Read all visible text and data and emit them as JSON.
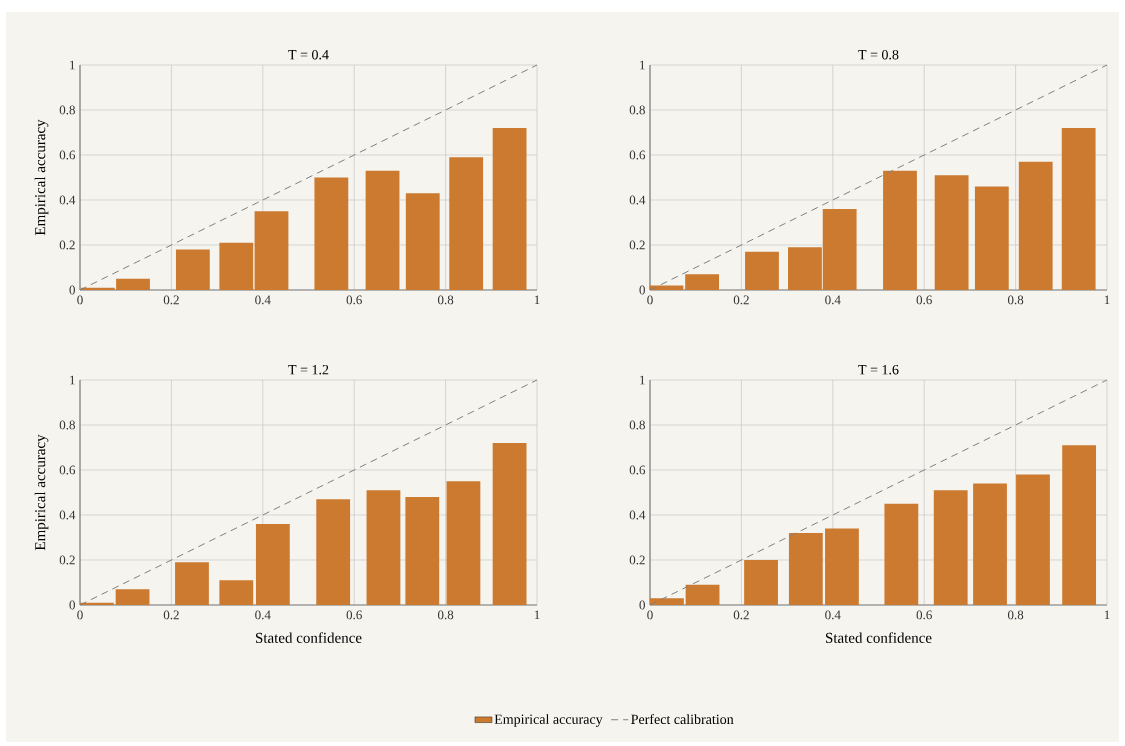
{
  "chart_data": [
    {
      "type": "bar",
      "title": "T = 0.4",
      "ylabel": "Empirical accuracy",
      "xlim": [
        0,
        1
      ],
      "ylim": [
        0,
        1
      ],
      "xticks": [
        0,
        0.2,
        0.4,
        0.6,
        0.8,
        1
      ],
      "yticks": [
        0,
        0.2,
        0.4,
        0.6,
        0.8,
        1
      ],
      "grid": true,
      "series": [
        {
          "color": "#cd7a31",
          "x": [
            0.039,
            0.116,
            0.247,
            0.342,
            0.419,
            0.55,
            0.662,
            0.75,
            0.845,
            0.94
          ],
          "values": [
            0.01,
            0.05,
            0.18,
            0.21,
            0.35,
            0.5,
            0.53,
            0.43,
            0.59,
            0.72
          ]
        },
        {
          "type": "line",
          "color": "#808080",
          "line_style": "dashed",
          "x": [
            0,
            1
          ],
          "values": [
            0,
            1
          ]
        }
      ]
    },
    {
      "type": "bar",
      "title": "T = 0.8",
      "xlim": [
        0,
        1
      ],
      "ylim": [
        0,
        1
      ],
      "xticks": [
        0,
        0.2,
        0.4,
        0.6,
        0.8,
        1
      ],
      "yticks": [
        0,
        0.2,
        0.4,
        0.6,
        0.8,
        1
      ],
      "grid": true,
      "series": [
        {
          "color": "#cd7a31",
          "x": [
            0.036,
            0.114,
            0.245,
            0.339,
            0.415,
            0.547,
            0.66,
            0.748,
            0.844,
            0.938
          ],
          "values": [
            0.02,
            0.07,
            0.17,
            0.19,
            0.36,
            0.53,
            0.51,
            0.46,
            0.57,
            0.72
          ]
        },
        {
          "type": "line",
          "color": "#808080",
          "line_style": "dashed",
          "x": [
            0,
            1
          ],
          "values": [
            0,
            1
          ]
        }
      ]
    },
    {
      "type": "bar",
      "title": "T = 1.2",
      "xlabel": "Stated confidence",
      "ylabel": "Empirical accuracy",
      "xlim": [
        0,
        1
      ],
      "ylim": [
        0,
        1
      ],
      "xticks": [
        0,
        0.2,
        0.4,
        0.6,
        0.8,
        1
      ],
      "yticks": [
        0,
        0.2,
        0.4,
        0.6,
        0.8,
        1
      ],
      "grid": true,
      "series": [
        {
          "color": "#cd7a31",
          "x": [
            0.037,
            0.115,
            0.245,
            0.342,
            0.422,
            0.554,
            0.664,
            0.749,
            0.839,
            0.94
          ],
          "values": [
            0.01,
            0.07,
            0.19,
            0.11,
            0.36,
            0.47,
            0.51,
            0.48,
            0.55,
            0.72
          ]
        },
        {
          "type": "line",
          "color": "#808080",
          "line_style": "dashed",
          "x": [
            0,
            1
          ],
          "values": [
            0,
            1
          ]
        }
      ]
    },
    {
      "type": "bar",
      "title": "T = 1.6",
      "xlabel": "Stated confidence",
      "xlim": [
        0,
        1
      ],
      "ylim": [
        0,
        1
      ],
      "xticks": [
        0,
        0.2,
        0.4,
        0.6,
        0.8,
        1
      ],
      "yticks": [
        0,
        0.2,
        0.4,
        0.6,
        0.8,
        1
      ],
      "grid": true,
      "legend": "bottom",
      "series": [
        {
          "name": "Empirical accuracy",
          "color": "#cd7a31",
          "x": [
            0.037,
            0.115,
            0.243,
            0.341,
            0.42,
            0.55,
            0.658,
            0.744,
            0.838,
            0.939
          ],
          "values": [
            0.03,
            0.09,
            0.2,
            0.32,
            0.34,
            0.45,
            0.51,
            0.54,
            0.58,
            0.71
          ]
        },
        {
          "name": "Perfect calibration",
          "type": "line",
          "color": "#808080",
          "line_style": "dashed",
          "x": [
            0,
            1
          ],
          "values": [
            0,
            1
          ]
        }
      ]
    }
  ]
}
